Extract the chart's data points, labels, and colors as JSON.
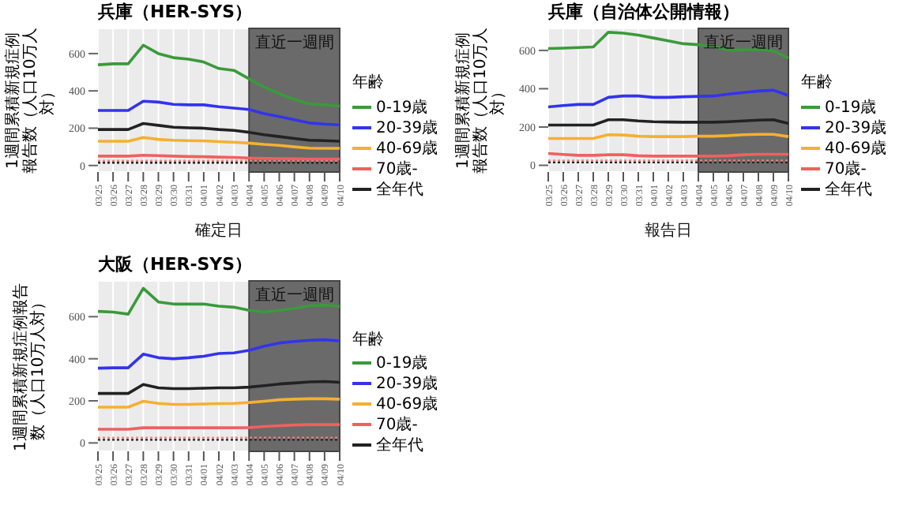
{
  "chart_data": [
    {
      "type": "line",
      "title": "兵庫（HER-SYS）",
      "xlabel": "確定日",
      "ylabel": "1週間累積新規症例報告数（人口10万人対）",
      "legend_title": "年齢",
      "legend": "right",
      "grid": true,
      "categories": [
        "03/25",
        "03/26",
        "03/27",
        "03/28",
        "03/29",
        "03/30",
        "03/31",
        "04/01",
        "04/02",
        "04/03",
        "04/04",
        "04/05",
        "04/06",
        "04/07",
        "04/08",
        "04/09",
        "04/10"
      ],
      "ylim": [
        -35,
        735
      ],
      "yticks": [
        0,
        200,
        400,
        600
      ],
      "series": [
        {
          "name": "0-19歳",
          "color": "#3a9a3a",
          "values": [
            540,
            545,
            545,
            645,
            600,
            578,
            570,
            555,
            520,
            510,
            465,
            420,
            385,
            355,
            330,
            325,
            318
          ]
        },
        {
          "name": "20-39歳",
          "color": "#3333ee",
          "values": [
            295,
            295,
            295,
            345,
            340,
            328,
            325,
            325,
            315,
            308,
            300,
            278,
            262,
            245,
            228,
            222,
            218
          ]
        },
        {
          "name": "40-69歳",
          "color": "#f5b031",
          "values": [
            130,
            130,
            130,
            150,
            140,
            135,
            133,
            132,
            128,
            125,
            120,
            113,
            108,
            100,
            93,
            92,
            92
          ]
        },
        {
          "name": "70歳-",
          "color": "#f06060",
          "values": [
            50,
            50,
            50,
            55,
            53,
            50,
            48,
            47,
            45,
            43,
            40,
            38,
            37,
            36,
            35,
            35,
            35
          ]
        },
        {
          "name": "全年代",
          "color": "#222222",
          "values": [
            193,
            193,
            193,
            225,
            215,
            205,
            202,
            200,
            193,
            188,
            178,
            165,
            155,
            145,
            135,
            133,
            130
          ]
        }
      ],
      "ref_lines": [
        {
          "axis": "y",
          "value": 25,
          "color": "#f08080",
          "line_style": "dotted"
        },
        {
          "axis": "y",
          "value": 15,
          "color": "#222222",
          "line_style": "dotted"
        }
      ],
      "bands": [
        {
          "axis": "x",
          "from": "04/04",
          "to": "04/10",
          "label": "直近一週間",
          "color": "#6a6a6a"
        }
      ]
    },
    {
      "type": "line",
      "title": "兵庫（自治体公開情報）",
      "xlabel": "報告日",
      "ylabel": "1週間累積新規症例報告数（人口10万人対）",
      "legend_title": "年齢",
      "legend": "right",
      "grid": true,
      "categories": [
        "03/25",
        "03/26",
        "03/27",
        "03/28",
        "03/29",
        "03/30",
        "03/31",
        "04/01",
        "04/02",
        "04/03",
        "04/04",
        "04/05",
        "04/06",
        "04/07",
        "04/08",
        "04/09",
        "04/10"
      ],
      "ylim": [
        -35,
        715
      ],
      "yticks": [
        0,
        200,
        400,
        600
      ],
      "series": [
        {
          "name": "0-19歳",
          "color": "#3a9a3a",
          "values": [
            610,
            612,
            615,
            618,
            695,
            690,
            680,
            665,
            650,
            635,
            630,
            620,
            602,
            603,
            605,
            598,
            560
          ]
        },
        {
          "name": "20-39歳",
          "color": "#3333ee",
          "values": [
            305,
            312,
            318,
            318,
            355,
            362,
            362,
            355,
            355,
            358,
            360,
            362,
            372,
            380,
            388,
            392,
            365
          ]
        },
        {
          "name": "40-69歳",
          "color": "#f5b031",
          "values": [
            140,
            140,
            140,
            140,
            160,
            158,
            152,
            150,
            150,
            150,
            152,
            152,
            155,
            160,
            162,
            162,
            150
          ]
        },
        {
          "name": "70歳-",
          "color": "#f06060",
          "values": [
            62,
            57,
            52,
            52,
            55,
            55,
            50,
            48,
            48,
            48,
            48,
            48,
            50,
            55,
            58,
            58,
            58
          ]
        },
        {
          "name": "全年代",
          "color": "#222222",
          "values": [
            210,
            210,
            210,
            210,
            238,
            238,
            232,
            228,
            226,
            225,
            225,
            225,
            228,
            232,
            236,
            238,
            218
          ]
        }
      ],
      "ref_lines": [
        {
          "axis": "y",
          "value": 25,
          "color": "#f08080",
          "line_style": "dotted"
        },
        {
          "axis": "y",
          "value": 15,
          "color": "#222222",
          "line_style": "dotted"
        }
      ],
      "bands": [
        {
          "axis": "x",
          "from": "04/04",
          "to": "04/10",
          "label": "直近一週間",
          "color": "#6a6a6a"
        }
      ]
    },
    {
      "type": "line",
      "title": "大阪（HER-SYS）",
      "ylabel": "1週間累積新規症例報告数（人口10万人対）",
      "legend_title": "年齢",
      "legend": "right",
      "grid": true,
      "categories": [
        "03/25",
        "03/26",
        "03/27",
        "03/28",
        "03/29",
        "03/30",
        "03/31",
        "04/01",
        "04/02",
        "04/03",
        "04/04",
        "04/05",
        "04/06",
        "04/07",
        "04/08",
        "04/09",
        "04/10"
      ],
      "ylim": [
        -40,
        770
      ],
      "yticks": [
        0,
        200,
        400,
        600
      ],
      "series": [
        {
          "name": "0-19歳",
          "color": "#3a9a3a",
          "values": [
            625,
            622,
            612,
            735,
            670,
            660,
            660,
            660,
            650,
            645,
            630,
            622,
            630,
            640,
            652,
            655,
            648
          ]
        },
        {
          "name": "20-39歳",
          "color": "#3333ee",
          "values": [
            355,
            357,
            357,
            422,
            405,
            400,
            405,
            412,
            425,
            428,
            440,
            460,
            475,
            482,
            488,
            490,
            485
          ]
        },
        {
          "name": "40-69歳",
          "color": "#f5b031",
          "values": [
            170,
            170,
            170,
            198,
            188,
            183,
            183,
            185,
            187,
            188,
            192,
            198,
            205,
            208,
            210,
            210,
            208
          ]
        },
        {
          "name": "70歳-",
          "color": "#f06060",
          "values": [
            65,
            65,
            65,
            72,
            72,
            72,
            72,
            72,
            72,
            72,
            73,
            78,
            82,
            85,
            87,
            87,
            87
          ]
        },
        {
          "name": "全年代",
          "color": "#222222",
          "values": [
            235,
            235,
            235,
            278,
            262,
            258,
            258,
            260,
            262,
            262,
            265,
            272,
            280,
            285,
            290,
            292,
            288
          ]
        }
      ],
      "ref_lines": [
        {
          "axis": "y",
          "value": 25,
          "color": "#f08080",
          "line_style": "dotted"
        },
        {
          "axis": "y",
          "value": 15,
          "color": "#222222",
          "line_style": "dotted"
        }
      ],
      "bands": [
        {
          "axis": "x",
          "from": "04/04",
          "to": "04/10",
          "label": "直近一週間",
          "color": "#6a6a6a"
        }
      ]
    }
  ]
}
